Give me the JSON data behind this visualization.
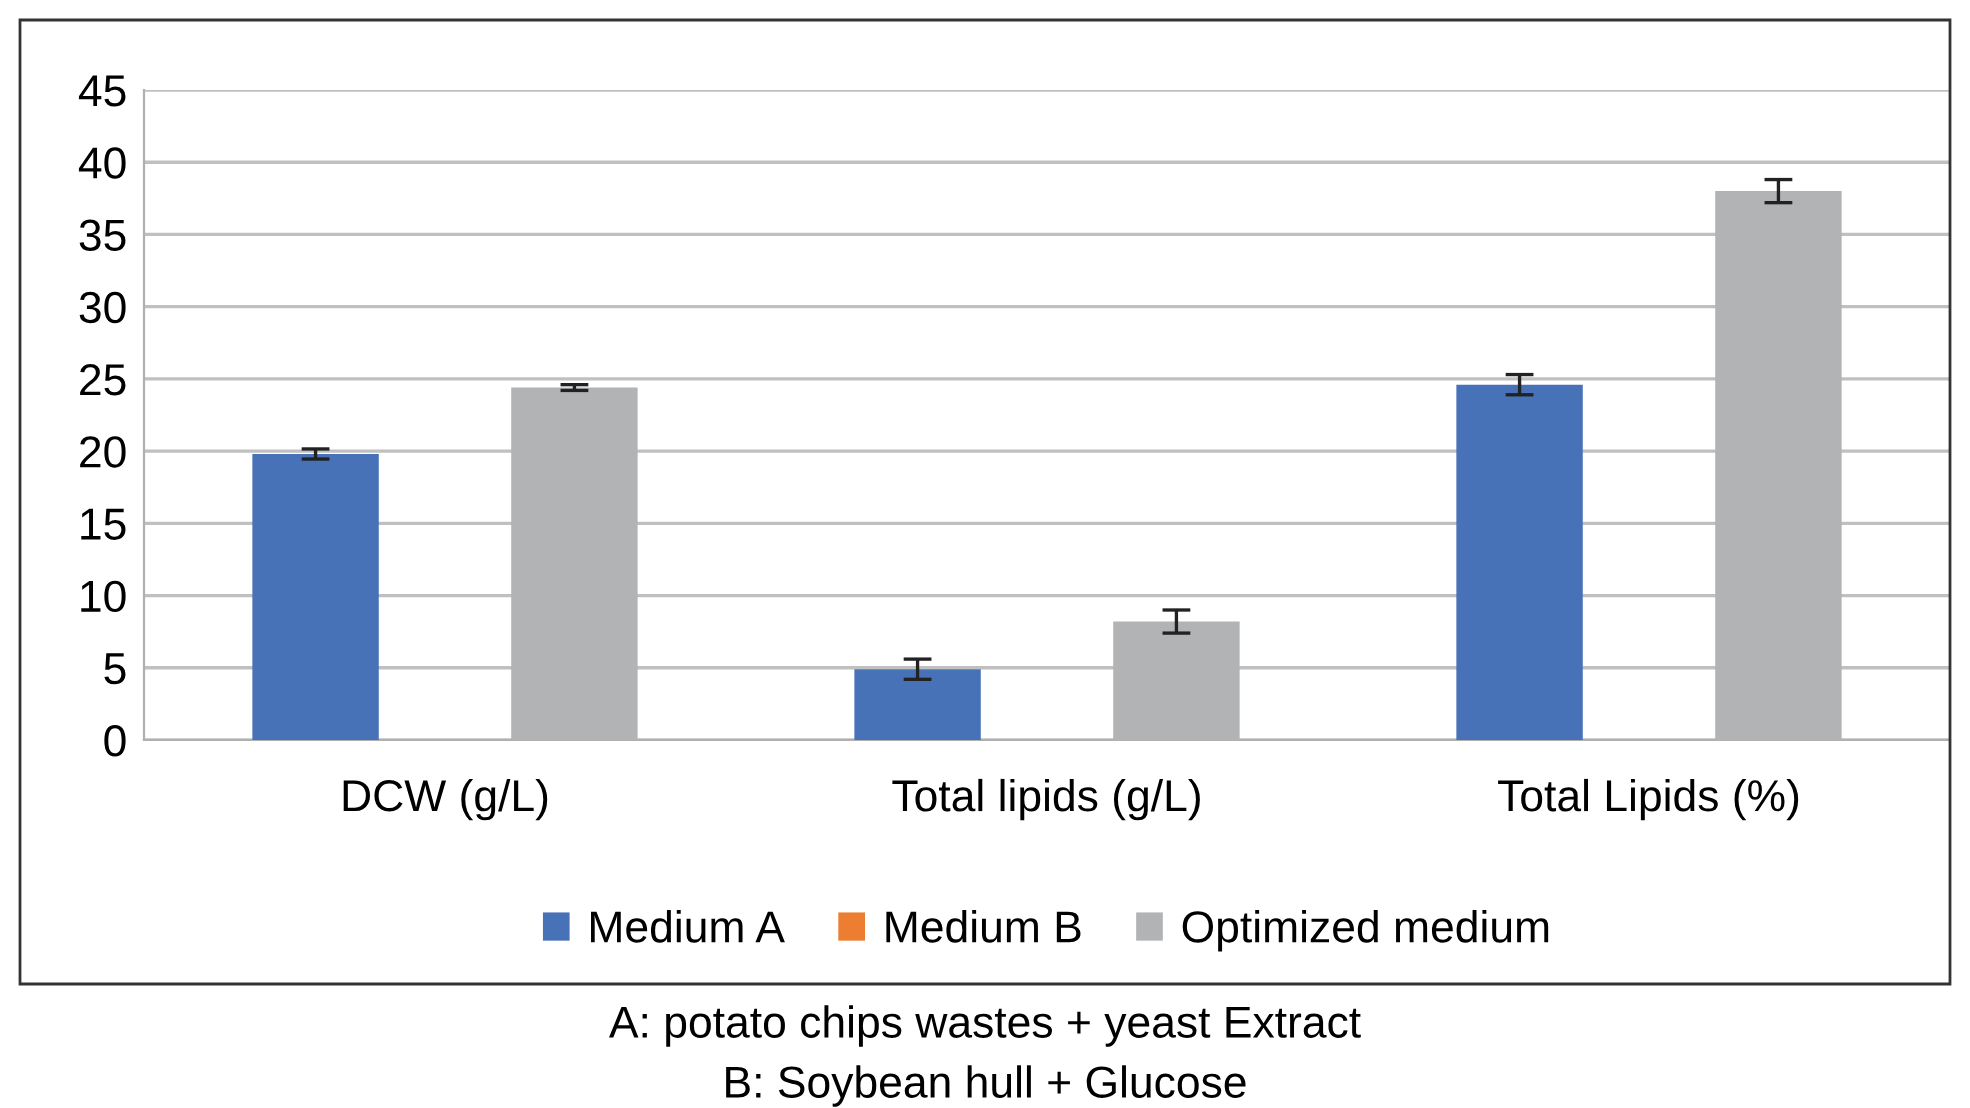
{
  "chart_data": {
    "type": "bar",
    "categories": [
      "DCW (g/L)",
      "Total lipids (g/L)",
      "Total Lipids (%)"
    ],
    "series": [
      {
        "name": "Medium A",
        "color": "#4872b8",
        "values": [
          19.8,
          4.9,
          24.6
        ],
        "errors": [
          0.35,
          0.7,
          0.7
        ]
      },
      {
        "name": "Medium B",
        "color": "#ed7d31",
        "values": [
          null,
          null,
          null
        ]
      },
      {
        "name": "Optimized medium",
        "color": "#b2b3b5",
        "values": [
          24.4,
          8.2,
          38.0
        ],
        "errors": [
          0.2,
          0.8,
          0.8
        ]
      }
    ],
    "ylim": [
      0,
      45
    ],
    "yticks": [
      0,
      5,
      10,
      15,
      20,
      25,
      30,
      35,
      40,
      45
    ],
    "grid": "y",
    "legend": "bottom",
    "annotations": [
      "A: potato chips wastes + yeast Extract",
      "B: Soybean hull + Glucose"
    ]
  }
}
